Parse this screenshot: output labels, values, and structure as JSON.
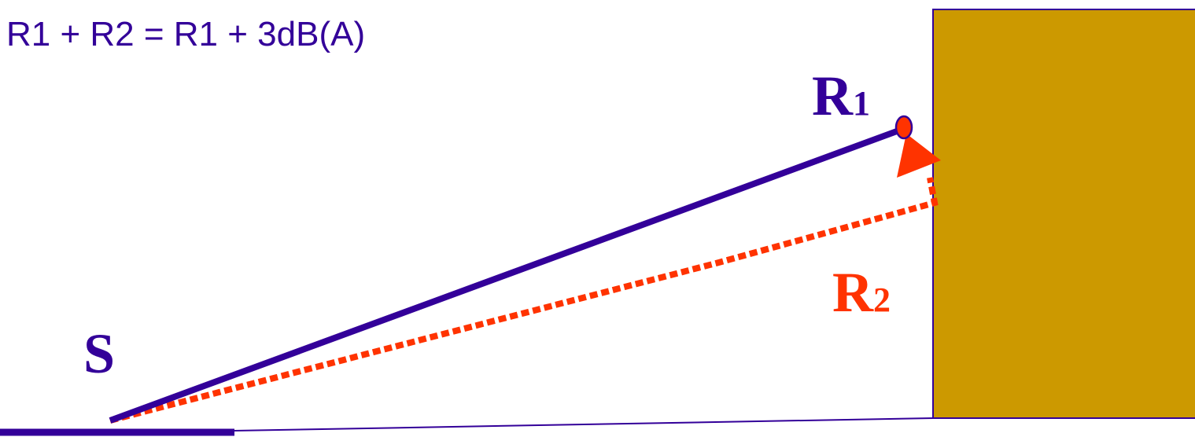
{
  "formula": "R1 + R2 = R1 + 3dB(A)",
  "labels": {
    "source": "S",
    "receiver1_main": "R",
    "receiver1_sub": "1",
    "receiver2_main": "R",
    "receiver2_sub": "2"
  },
  "colors": {
    "primary": "#330099",
    "reflection": "#ff3300",
    "wall_fill": "#cc9900",
    "wall_stroke": "#330099",
    "receiver_fill": "#ff3300",
    "background": "#ffffff"
  }
}
